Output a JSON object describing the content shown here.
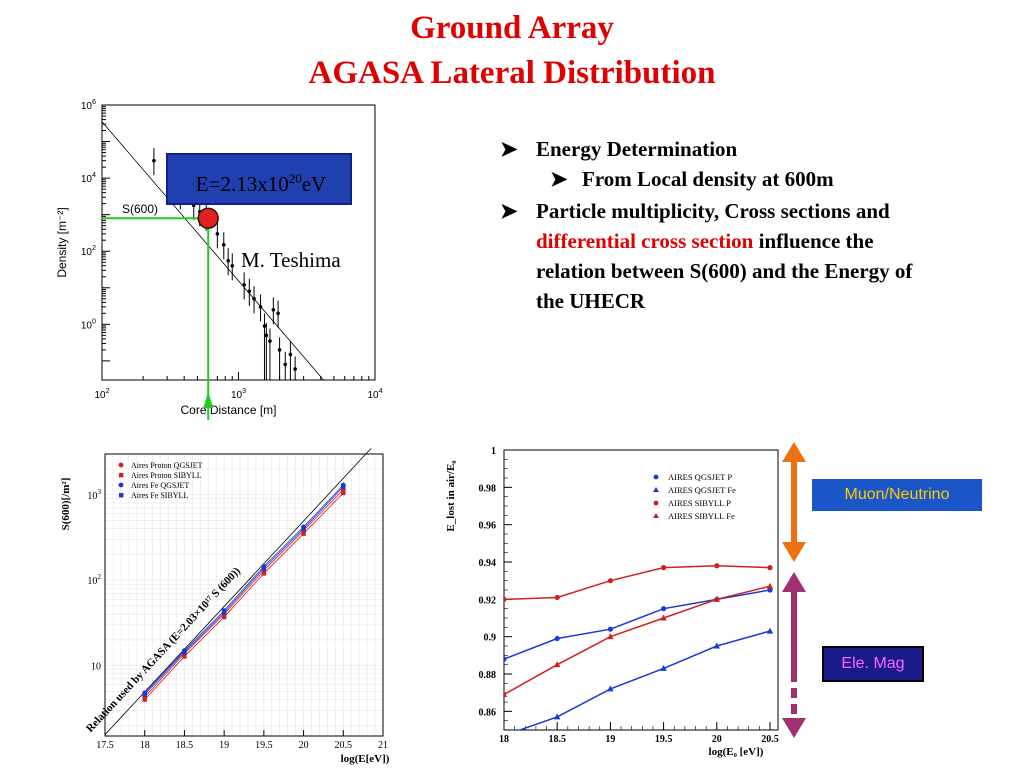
{
  "slide": {
    "title_line1": "Ground Array",
    "title_line2": "AGASA Lateral Distribution",
    "colors": {
      "title": "#e00000",
      "highlight": "#e00000",
      "energy_box": "#2040b0",
      "muon_box": "#1a56c8",
      "ele_box": "#1a1a8a"
    }
  },
  "bullets": {
    "b1": "Energy Determination",
    "b1_sub": "From Local density at 600m",
    "b2_part1": "Particle multiplicity, Cross sections and ",
    "b2_highlight": "differential cross section",
    "b2_part2": " influence the relation between S(600) and the Energy of the UHECR",
    "marker_icon": "arrowhead-bullet-icon"
  },
  "energy_box": {
    "prefix": "E=2.13x10",
    "exponent": "20",
    "unit": "eV"
  },
  "author": "M. Teshima",
  "labels": {
    "muon": "Muon/Neutrino",
    "ele": "Ele. Mag"
  },
  "chart_data": [
    {
      "type": "scatter",
      "name": "lateral-distribution",
      "xlabel": "Core Distance [m]",
      "ylabel": "Density [m⁻²]",
      "xscale": "log",
      "yscale": "log",
      "xlim": [
        100,
        10000
      ],
      "ylim": [
        0.03,
        1000000
      ],
      "x_ticks": [
        {
          "base": "10",
          "exp": "2"
        },
        {
          "base": "10",
          "exp": "3"
        },
        {
          "base": "10",
          "exp": "4"
        }
      ],
      "y_ticks": [
        {
          "base": "10",
          "exp": "0"
        },
        {
          "base": "10",
          "exp": "2"
        },
        {
          "base": "10",
          "exp": "4"
        },
        {
          "base": "10",
          "exp": "6"
        }
      ],
      "annotation": "S(600)",
      "s600_point": {
        "x": 600,
        "y": 800
      },
      "fit_line": [
        [
          100,
          350000
        ],
        [
          4200,
          0.03
        ]
      ],
      "points": [
        [
          240,
          30000
        ],
        [
          375,
          3500
        ],
        [
          470,
          1800
        ],
        [
          520,
          1200
        ],
        [
          580,
          900
        ],
        [
          700,
          300
        ],
        [
          780,
          150
        ],
        [
          840,
          55
        ],
        [
          900,
          40
        ],
        [
          1100,
          12
        ],
        [
          1200,
          8
        ],
        [
          1300,
          5
        ],
        [
          1450,
          3
        ],
        [
          1550,
          0.9
        ],
        [
          1600,
          0.5
        ],
        [
          1700,
          0.35
        ],
        [
          1800,
          2.5
        ],
        [
          1950,
          2
        ],
        [
          2000,
          0.2
        ],
        [
          2200,
          0.08
        ],
        [
          2400,
          0.15
        ],
        [
          2600,
          0.06
        ]
      ],
      "grid": false
    },
    {
      "type": "line",
      "name": "s600-vs-energy",
      "xlabel": "log(E[eV])",
      "ylabel": "S(600)[/m²]",
      "yscale": "log",
      "xlim": [
        17.5,
        21
      ],
      "ylim": [
        1.5,
        3000
      ],
      "x_ticks": [
        "17.5",
        "18",
        "18.5",
        "19",
        "19.5",
        "20",
        "20.5",
        "21"
      ],
      "y_ticks": [
        {
          "base": "10",
          "exp": ""
        },
        {
          "base": "10",
          "exp": "2"
        },
        {
          "base": "10",
          "exp": "3"
        }
      ],
      "annotation": "Relation used by AGASA (E=2.03×10¹⁷ S (600))",
      "x": [
        18,
        18.5,
        19,
        19.5,
        20,
        20.5
      ],
      "series": [
        {
          "name": "Aires Proton QGSJET",
          "color": "#d02020",
          "marker": "circle",
          "values": [
            4.3,
            13.8,
            40,
            130,
            380,
            1150
          ]
        },
        {
          "name": "Aires Proton SIBYLL",
          "color": "#d02020",
          "marker": "square",
          "values": [
            4.0,
            12.8,
            37,
            120,
            350,
            1050
          ]
        },
        {
          "name": "Aires Fe QGSJET",
          "color": "#1a3ad8",
          "marker": "circle",
          "values": [
            4.8,
            15,
            44,
            145,
            420,
            1300
          ]
        },
        {
          "name": "Aires Fe SIBYLL",
          "color": "#1a3ad8",
          "marker": "square",
          "values": [
            4.6,
            14.4,
            42,
            138,
            400,
            1240
          ]
        }
      ],
      "grid": true,
      "legend": "top-left"
    },
    {
      "type": "line",
      "name": "energy-lost-in-air",
      "xlabel": "log(E₀ [eV])",
      "ylabel": "E_lost in air/E₀",
      "xlim": [
        18,
        20.5
      ],
      "ylim": [
        0.85,
        1.0
      ],
      "x_ticks": [
        "18",
        "18.5",
        "19",
        "19.5",
        "20",
        "20.5"
      ],
      "y_ticks": [
        "0.86",
        "0.88",
        "0.9",
        "0.92",
        "0.94",
        "0.96",
        "0.98",
        "1"
      ],
      "x": [
        18,
        18.5,
        19,
        19.5,
        20,
        20.5
      ],
      "series": [
        {
          "name": "AIRES QGSJET P",
          "color": "#1a3ad8",
          "marker": "circle",
          "values": [
            0.888,
            0.899,
            0.904,
            0.915,
            0.92,
            0.925
          ]
        },
        {
          "name": "AIRES QGSJET Fe",
          "color": "#1a3ad8",
          "marker": "triangle",
          "values": [
            0.847,
            0.857,
            0.872,
            0.883,
            0.895,
            0.903
          ]
        },
        {
          "name": "AIRES SIBYLL P",
          "color": "#d02020",
          "marker": "circle",
          "values": [
            0.92,
            0.921,
            0.93,
            0.937,
            0.938,
            0.937
          ]
        },
        {
          "name": "AIRES SIBYLL Fe",
          "color": "#d02020",
          "marker": "triangle",
          "values": [
            0.869,
            0.885,
            0.9,
            0.91,
            0.92,
            0.927
          ]
        }
      ],
      "grid": false,
      "legend": "top-right"
    }
  ]
}
